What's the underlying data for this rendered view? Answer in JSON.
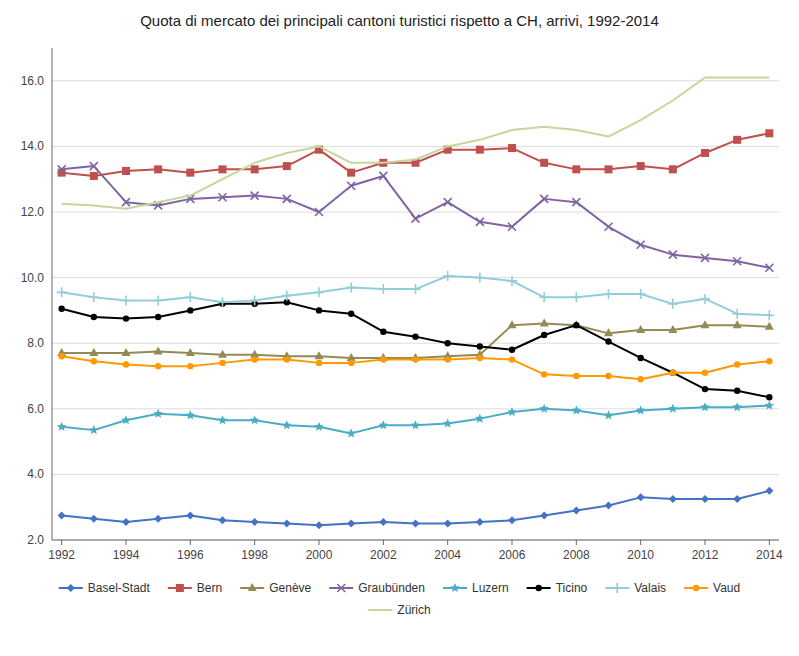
{
  "chart_data": {
    "type": "line",
    "title": "Quota di mercato dei principali cantoni turistici rispetto a CH, arrivi, 1992-2014",
    "x": [
      1992,
      1993,
      1994,
      1995,
      1996,
      1997,
      1998,
      1999,
      2000,
      2001,
      2002,
      2003,
      2004,
      2005,
      2006,
      2007,
      2008,
      2009,
      2010,
      2011,
      2012,
      2013,
      2014
    ],
    "series": [
      {
        "name": "Basel-Stadt",
        "color": "#4472C4",
        "marker": "diamond",
        "values": [
          2.75,
          2.65,
          2.55,
          2.65,
          2.75,
          2.6,
          2.55,
          2.5,
          2.45,
          2.5,
          2.55,
          2.5,
          2.5,
          2.55,
          2.6,
          2.75,
          2.9,
          3.05,
          3.3,
          3.25,
          3.25,
          3.25,
          3.5
        ]
      },
      {
        "name": "Bern",
        "color": "#C0504D",
        "marker": "square",
        "values": [
          13.2,
          13.1,
          13.25,
          13.3,
          13.2,
          13.3,
          13.3,
          13.4,
          13.9,
          13.2,
          13.5,
          13.5,
          13.9,
          13.9,
          13.95,
          13.5,
          13.3,
          13.3,
          13.4,
          13.3,
          13.8,
          14.2,
          14.4
        ]
      },
      {
        "name": "Genève",
        "color": "#948A54",
        "marker": "triangle",
        "values": [
          7.7,
          7.7,
          7.7,
          7.75,
          7.7,
          7.65,
          7.65,
          7.6,
          7.6,
          7.55,
          7.55,
          7.55,
          7.6,
          7.65,
          8.55,
          8.6,
          8.55,
          8.3,
          8.4,
          8.4,
          8.55,
          8.55,
          8.5
        ]
      },
      {
        "name": "Graubünden",
        "color": "#8064A2",
        "marker": "x",
        "values": [
          13.3,
          13.4,
          12.3,
          12.2,
          12.4,
          12.45,
          12.5,
          12.4,
          12.0,
          12.8,
          13.1,
          11.8,
          12.3,
          11.7,
          11.55,
          12.4,
          12.3,
          11.55,
          11.0,
          10.7,
          10.6,
          10.5,
          10.3
        ]
      },
      {
        "name": "Luzern",
        "color": "#4BACC6",
        "marker": "star",
        "values": [
          5.45,
          5.35,
          5.65,
          5.85,
          5.8,
          5.65,
          5.65,
          5.5,
          5.45,
          5.25,
          5.5,
          5.5,
          5.55,
          5.7,
          5.9,
          6.0,
          5.95,
          5.8,
          5.95,
          6.0,
          6.05,
          6.05,
          6.1
        ]
      },
      {
        "name": "Ticino",
        "color": "#000000",
        "marker": "circle",
        "values": [
          9.05,
          8.8,
          8.75,
          8.8,
          9.0,
          9.2,
          9.2,
          9.25,
          9.0,
          8.9,
          8.35,
          8.2,
          8.0,
          7.9,
          7.8,
          8.25,
          8.55,
          8.05,
          7.55,
          7.1,
          6.6,
          6.55,
          6.35
        ]
      },
      {
        "name": "Valais",
        "color": "#92CDDC",
        "marker": "plus",
        "values": [
          9.55,
          9.4,
          9.3,
          9.3,
          9.4,
          9.25,
          9.3,
          9.45,
          9.55,
          9.7,
          9.65,
          9.65,
          10.05,
          10.0,
          9.9,
          9.4,
          9.4,
          9.5,
          9.5,
          9.2,
          9.35,
          8.9,
          8.85
        ]
      },
      {
        "name": "Vaud",
        "color": "#FF9900",
        "marker": "circle",
        "values": [
          7.6,
          7.45,
          7.35,
          7.3,
          7.3,
          7.4,
          7.5,
          7.5,
          7.4,
          7.4,
          7.5,
          7.5,
          7.5,
          7.55,
          7.5,
          7.05,
          7.0,
          7.0,
          6.9,
          7.1,
          7.1,
          7.35,
          7.45
        ]
      },
      {
        "name": "Zürich",
        "color": "#C4D79B",
        "marker": "none",
        "values": [
          12.25,
          12.2,
          12.1,
          12.3,
          12.5,
          13.0,
          13.5,
          13.8,
          14.0,
          13.5,
          13.5,
          13.6,
          14.0,
          14.2,
          14.5,
          14.6,
          14.5,
          14.3,
          14.8,
          15.4,
          16.1,
          16.1,
          16.1
        ]
      }
    ],
    "xlim": [
      1991.7,
      2014.3
    ],
    "xticks": [
      1992,
      1994,
      1996,
      1998,
      2000,
      2002,
      2004,
      2006,
      2008,
      2010,
      2012,
      2014
    ],
    "ylim": [
      2.0,
      17.0
    ],
    "yticks": [
      {
        "value": 2.0,
        "label": "2.0"
      },
      {
        "value": 4.0,
        "label": "4.0"
      },
      {
        "value": 6.0,
        "label": "6.0"
      },
      {
        "value": 8.0,
        "label": "8.0"
      },
      {
        "value": 10.0,
        "label": "10.0"
      },
      {
        "value": 12.0,
        "label": "12.0"
      },
      {
        "value": 14.0,
        "label": "14.0"
      },
      {
        "value": 16.0,
        "label": "16.0"
      }
    ],
    "grid": true,
    "legend": "bottom"
  }
}
